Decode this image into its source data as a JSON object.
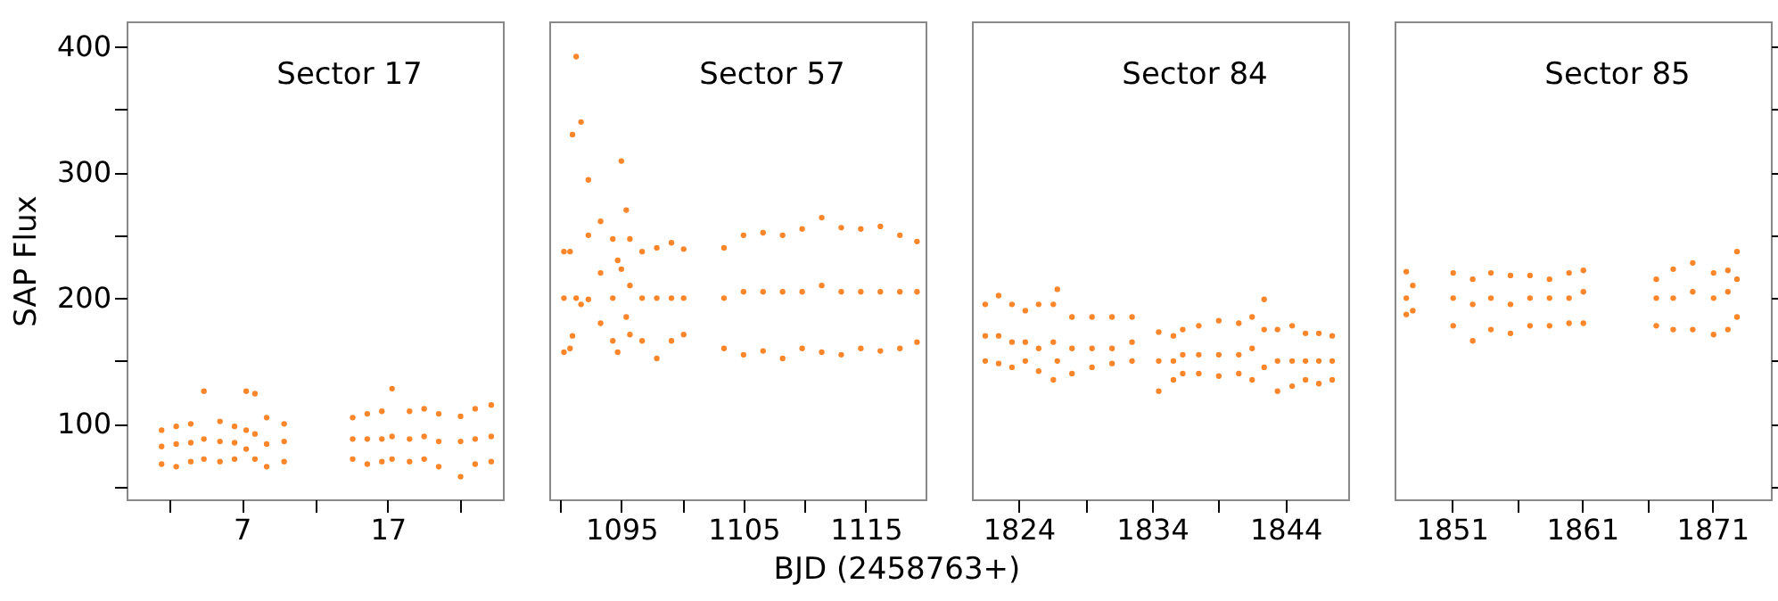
{
  "chart_data": [
    {
      "type": "scatter",
      "title": "Sector 17",
      "ylabel": "SAP Flux",
      "marker": "circle",
      "xlim": [
        -0.9,
        24.9
      ],
      "ylim": [
        40,
        420
      ],
      "xticks": [
        {
          "value": 2,
          "label": null
        },
        7,
        {
          "value": 12,
          "label": null
        },
        17,
        {
          "value": 22,
          "label": null
        }
      ],
      "yticks": [
        {
          "value": 50,
          "label": null
        },
        100,
        {
          "value": 150,
          "label": null
        },
        200,
        {
          "value": 250,
          "label": null
        },
        300,
        {
          "value": 350,
          "label": null
        },
        400
      ],
      "series": [
        {
          "color": "#fd852a",
          "x": [
            1.5,
            1.5,
            1.5,
            2.5,
            2.5,
            2.5,
            3.5,
            3.5,
            3.5,
            4.4,
            4.4,
            4.4,
            5.5,
            5.5,
            5.5,
            6.5,
            6.5,
            6.5,
            7.3,
            7.3,
            7.3,
            7.9,
            7.9,
            7.9,
            8.7,
            8.7,
            8.7,
            9.9,
            9.9,
            9.9,
            14.6,
            14.6,
            14.6,
            15.6,
            15.6,
            15.6,
            16.6,
            16.6,
            16.6,
            17.3,
            17.3,
            17.3,
            18.5,
            18.5,
            18.5,
            19.5,
            19.5,
            19.5,
            20.5,
            20.5,
            20.5,
            22,
            22,
            22,
            23,
            23,
            23,
            24.1,
            24.1,
            24.1
          ],
          "values": [
            68,
            82,
            95,
            66,
            84,
            98,
            70,
            85,
            100,
            72,
            88,
            126,
            70,
            86,
            102,
            72,
            85,
            98,
            80,
            95,
            126,
            72,
            92,
            124,
            66,
            84,
            105,
            70,
            86,
            100,
            72,
            88,
            105,
            68,
            88,
            108,
            70,
            88,
            110,
            72,
            90,
            128,
            70,
            88,
            110,
            72,
            90,
            112,
            66,
            86,
            108,
            58,
            86,
            106,
            68,
            88,
            112,
            70,
            90,
            115
          ]
        }
      ]
    },
    {
      "type": "scatter",
      "title": "Sector 57",
      "xlabel": "BJD (2458763+)",
      "marker": "circle",
      "tick_labels": "x",
      "xlim": [
        1089.1,
        1119.9
      ],
      "ylim": [
        40,
        420
      ],
      "xticks": [
        {
          "value": 1090,
          "label": null
        },
        1095,
        {
          "value": 1100,
          "label": null
        },
        1105,
        {
          "value": 1110,
          "label": null
        },
        1115
      ],
      "series": [
        {
          "color": "#fd852a",
          "x": [
            1090.3,
            1090.3,
            1090.3,
            1090.8,
            1090.8,
            1091,
            1091,
            1091.3,
            1091.3,
            1091.7,
            1091.7,
            1092.3,
            1092.3,
            1092.3,
            1093.3,
            1093.3,
            1093.3,
            1094.3,
            1094.3,
            1094.3,
            1094.7,
            1094.7,
            1095,
            1095,
            1095.4,
            1095.4,
            1095.7,
            1095.7,
            1095.7,
            1096.7,
            1096.7,
            1096.7,
            1097.9,
            1097.9,
            1097.9,
            1099.1,
            1099.1,
            1099.1,
            1100.1,
            1100.1,
            1100.1,
            1103.4,
            1103.4,
            1103.4,
            1105,
            1105,
            1105,
            1106.6,
            1106.6,
            1106.6,
            1108.2,
            1108.2,
            1108.2,
            1109.8,
            1109.8,
            1109.8,
            1111.4,
            1111.4,
            1111.4,
            1113,
            1113,
            1113,
            1114.6,
            1114.6,
            1114.6,
            1116.2,
            1116.2,
            1116.2,
            1117.8,
            1117.8,
            1117.8,
            1119.2,
            1119.2,
            1119.2
          ],
          "values": [
            157,
            200,
            237,
            160,
            237,
            170,
            330,
            200,
            392,
            195,
            340,
            199,
            250,
            294,
            180,
            220,
            261,
            166,
            200,
            247,
            157,
            230,
            223,
            309,
            185,
            270,
            171,
            210,
            247,
            166,
            200,
            237,
            152,
            200,
            240,
            166,
            200,
            244,
            171,
            200,
            239,
            160,
            200,
            240,
            155,
            205,
            250,
            158,
            205,
            252,
            152,
            205,
            250,
            160,
            205,
            255,
            157,
            210,
            264,
            155,
            205,
            256,
            160,
            205,
            255,
            158,
            205,
            257,
            160,
            205,
            250,
            165,
            205,
            245
          ]
        }
      ]
    },
    {
      "type": "scatter",
      "title": "Sector 84",
      "marker": "circle",
      "tick_labels": "x",
      "xlim": [
        1820.5,
        1848.7
      ],
      "ylim": [
        40,
        420
      ],
      "xticks": [
        1824,
        {
          "value": 1829,
          "label": null
        },
        1834,
        {
          "value": 1839,
          "label": null
        },
        1844
      ],
      "series": [
        {
          "color": "#fd852a",
          "x": [
            1821.5,
            1821.5,
            1821.5,
            1822.5,
            1822.5,
            1822.5,
            1823.5,
            1823.5,
            1823.5,
            1824.5,
            1824.5,
            1824.5,
            1825.5,
            1825.5,
            1825.5,
            1826.6,
            1826.6,
            1826.6,
            1826.9,
            1826.9,
            1828,
            1828,
            1828,
            1829.5,
            1829.5,
            1829.5,
            1831,
            1831,
            1831,
            1832.5,
            1832.5,
            1832.5,
            1834.5,
            1834.5,
            1834.5,
            1835.6,
            1835.6,
            1835.6,
            1836.3,
            1836.3,
            1836.3,
            1837.5,
            1837.5,
            1837.5,
            1839,
            1839,
            1839,
            1840.5,
            1840.5,
            1840.5,
            1841.5,
            1841.5,
            1841.5,
            1842.4,
            1842.4,
            1842.4,
            1843.4,
            1843.4,
            1843.4,
            1844.5,
            1844.5,
            1844.5,
            1845.5,
            1845.5,
            1845.5,
            1846.5,
            1846.5,
            1846.5,
            1847.5,
            1847.5,
            1847.5
          ],
          "values": [
            150,
            170,
            195,
            148,
            170,
            202,
            145,
            165,
            195,
            150,
            165,
            190,
            142,
            160,
            195,
            135,
            165,
            195,
            150,
            207,
            140,
            160,
            185,
            145,
            160,
            185,
            148,
            160,
            185,
            150,
            165,
            185,
            126,
            150,
            173,
            135,
            150,
            170,
            140,
            155,
            175,
            140,
            155,
            178,
            138,
            155,
            182,
            140,
            155,
            180,
            135,
            160,
            185,
            145,
            175,
            199,
            126,
            150,
            175,
            130,
            150,
            178,
            135,
            150,
            172,
            132,
            150,
            172,
            135,
            150,
            170
          ]
        }
      ]
    },
    {
      "type": "scatter",
      "title": "Sector 85",
      "marker": "circle",
      "tick_labels": "x",
      "xlim": [
        1846.6,
        1875.5
      ],
      "ylim": [
        40,
        420
      ],
      "xticks": [
        1851,
        {
          "value": 1856,
          "label": null
        },
        1861,
        {
          "value": 1866,
          "label": null
        },
        1871
      ],
      "yticks": [
        {
          "value": 50,
          "label": null
        },
        {
          "value": 100,
          "label": null
        },
        {
          "value": 150,
          "label": null
        },
        {
          "value": 200,
          "label": null
        },
        {
          "value": 250,
          "label": null
        },
        {
          "value": 300,
          "label": null
        },
        {
          "value": 350,
          "label": null
        },
        {
          "value": 400,
          "label": null
        }
      ],
      "series": [
        {
          "color": "#fd852a",
          "x": [
            1847.5,
            1847.5,
            1847.5,
            1848,
            1848,
            1851.1,
            1851.1,
            1851.1,
            1852.6,
            1852.6,
            1852.6,
            1854,
            1854,
            1854,
            1855.5,
            1855.5,
            1855.5,
            1857,
            1857,
            1857,
            1858.5,
            1858.5,
            1858.5,
            1860,
            1860,
            1860,
            1861.1,
            1861.1,
            1861.1,
            1866.7,
            1866.7,
            1866.7,
            1868,
            1868,
            1868,
            1869.5,
            1869.5,
            1869.5,
            1871.1,
            1871.1,
            1871.1,
            1872.2,
            1872.2,
            1872.2,
            1872.9,
            1872.9,
            1872.9
          ],
          "values": [
            187,
            200,
            221,
            190,
            210,
            178,
            200,
            220,
            166,
            195,
            215,
            175,
            200,
            220,
            172,
            195,
            218,
            178,
            200,
            218,
            178,
            200,
            215,
            180,
            200,
            220,
            180,
            205,
            222,
            178,
            200,
            215,
            175,
            200,
            223,
            175,
            205,
            228,
            171,
            200,
            220,
            175,
            205,
            222,
            185,
            215,
            237
          ]
        }
      ]
    }
  ]
}
